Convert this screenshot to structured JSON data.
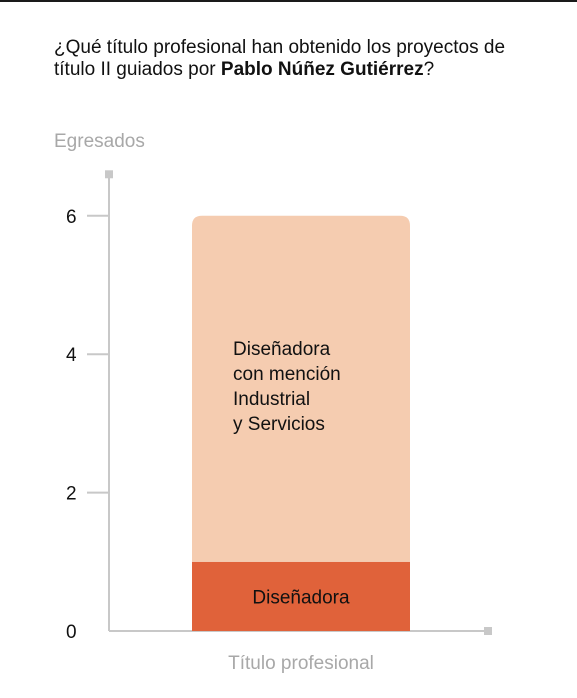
{
  "question": {
    "prefix": "¿Qué título profesional han obtenido los proyectos de título II guiados por ",
    "name": "Pablo Núñez Gutiérrez",
    "suffix": "?"
  },
  "colors": {
    "axis": "#c8c8c8",
    "axis_label": "#a8a8a8",
    "tick_label": "#111111",
    "segment_top": "#f5ccb0",
    "segment_bottom": "#e0623a"
  },
  "chart_data": {
    "type": "bar",
    "stacked": true,
    "ylabel": "Egresados",
    "xlabel": "Título profesional",
    "ylim": [
      0,
      6.6
    ],
    "yticks": [
      0,
      2,
      4,
      6
    ],
    "categories": [
      ""
    ],
    "series": [
      {
        "name": "Diseñadora",
        "values": [
          1
        ]
      },
      {
        "name": "Diseñadora con mención Industrial y Servicios",
        "values": [
          5
        ]
      }
    ],
    "segment_labels": [
      [
        "Diseñadora"
      ],
      [
        "Diseñadora",
        "con mención",
        "Industrial",
        "y Servicios"
      ]
    ]
  }
}
